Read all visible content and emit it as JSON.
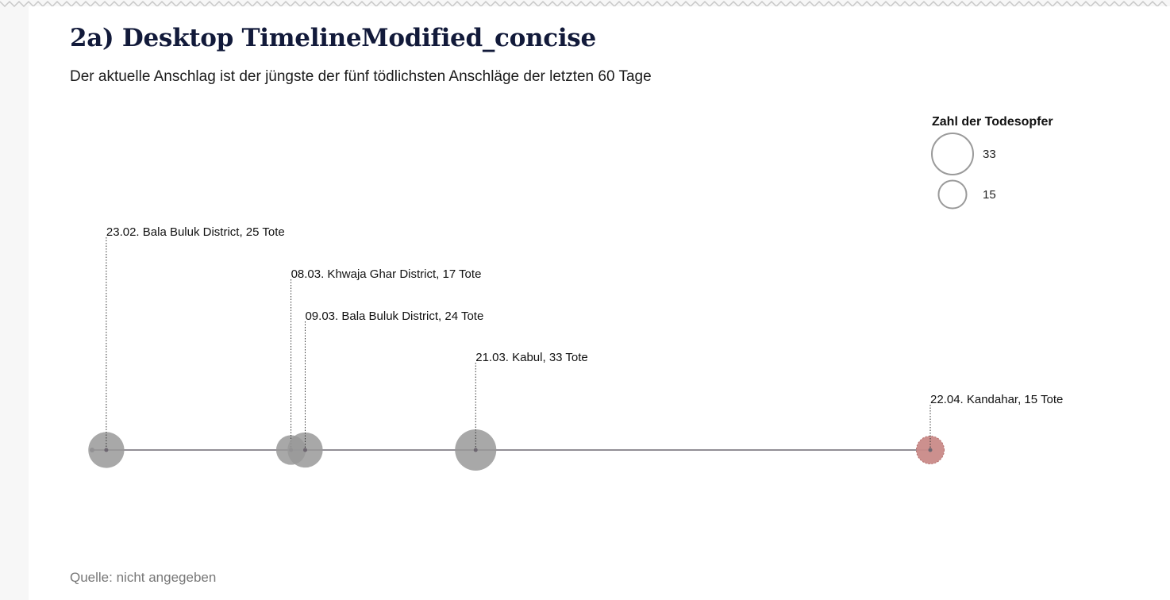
{
  "title": "2a) Desktop TimelineModified_concise",
  "subtitle": "Der aktuelle Anschlag ist der jüngste der fünf tödlichsten Anschläge der letzten 60 Tage",
  "source": "Quelle: nicht angegeben",
  "colors": {
    "past_event": "#999999",
    "current_event": "#c98a88",
    "axis": "#6f6872",
    "title": "#121a3a"
  },
  "chart_data": {
    "type": "scatter",
    "title": "2a) Desktop TimelineModified_concise",
    "subtitle": "Der aktuelle Anschlag ist der jüngste der fünf tödlichsten Anschläge der letzten 60 Tage",
    "x_domain": [
      "2019-02-22",
      "2019-04-22"
    ],
    "size_legend": {
      "title": "Zahl der Todesopfer",
      "entries": [
        {
          "value": 33,
          "label": "33"
        },
        {
          "value": 15,
          "label": "15"
        }
      ]
    },
    "events": [
      {
        "date": "2019-02-23",
        "deaths": 25,
        "label": "23.02. Bala Buluk District, 25 Tote",
        "current": false
      },
      {
        "date": "2019-03-08",
        "deaths": 17,
        "label": "08.03. Khwaja Ghar District, 17 Tote",
        "current": false
      },
      {
        "date": "2019-03-09",
        "deaths": 24,
        "label": "09.03. Bala Buluk District, 24 Tote",
        "current": false
      },
      {
        "date": "2019-03-21",
        "deaths": 33,
        "label": "21.03. Kabul, 33 Tote",
        "current": false
      },
      {
        "date": "2019-04-22",
        "deaths": 15,
        "label": "22.04. Kandahar, 15 Tote",
        "current": true
      }
    ]
  }
}
